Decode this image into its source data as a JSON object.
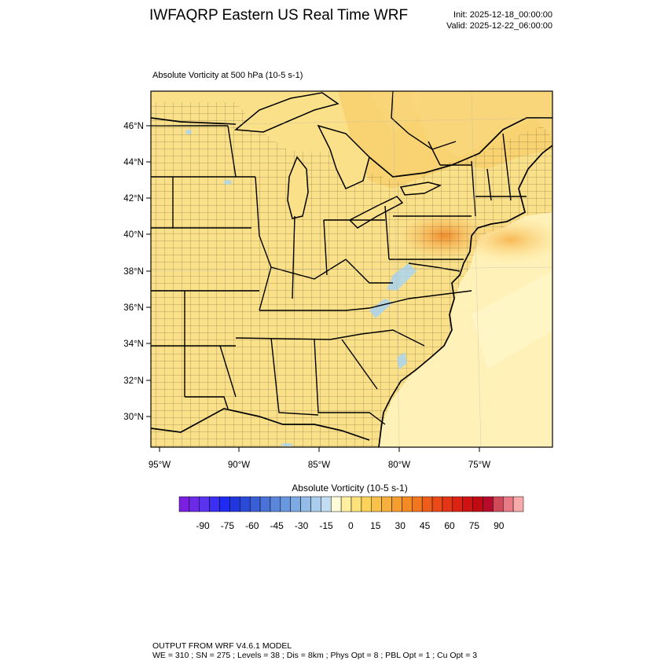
{
  "header": {
    "title": "IWFAQRP Eastern US Real Time WRF",
    "init": "Init: 2025-12-18_00:00:00",
    "valid": "Valid: 2025-12-22_06:00:00"
  },
  "plot": {
    "title": "Absolute Vorticity at 500 hPa   (10-5 s-1)",
    "lat_labels": [
      "46°N",
      "44°N",
      "42°N",
      "40°N",
      "38°N",
      "36°N",
      "34°N",
      "32°N",
      "30°N"
    ],
    "lon_labels": [
      "95°W",
      "90°W",
      "85°W",
      "80°W",
      "75°W"
    ],
    "colors": {
      "land_base": "#fbe08a",
      "ocean_base": "#fff1b8",
      "high_vorticity": "#f7b24a",
      "peak_vorticity": "#f08a2a",
      "water_features": "#a9d3ef"
    }
  },
  "colorbar": {
    "title": "Absolute Vorticity  (10-5 s-1)",
    "tick_labels": [
      "-90",
      "-75",
      "-60",
      "-45",
      "-30",
      "-15",
      "0",
      "15",
      "30",
      "45",
      "60",
      "75",
      "90"
    ],
    "colors": [
      "#7a1fe0",
      "#6a2ae8",
      "#5a33ee",
      "#3a2ff2",
      "#1f2bf0",
      "#2236e0",
      "#2c4ad8",
      "#3a5ed6",
      "#4a72d8",
      "#5a86dc",
      "#6a98e0",
      "#7eaae4",
      "#94bce8",
      "#aacdee",
      "#c2ddf2",
      "#fffbd9",
      "#fff0a0",
      "#fde27a",
      "#fbd25a",
      "#f9c14a",
      "#f7b03e",
      "#f59e2e",
      "#f38a24",
      "#f1761e",
      "#ee5e1a",
      "#ea4a18",
      "#e43616",
      "#dc2414",
      "#d01212",
      "#c00a14",
      "#b80a2a",
      "#d04a5a",
      "#e87a86",
      "#f6aaaa"
    ]
  },
  "footer": {
    "line1": "OUTPUT FROM WRF V4.6.1 MODEL",
    "line2": "WE = 310 ; SN = 275 ; Levels = 38 ; Dis = 8km ; Phys Opt = 8 ; PBL Opt = 1 ; Cu Opt = 3"
  }
}
